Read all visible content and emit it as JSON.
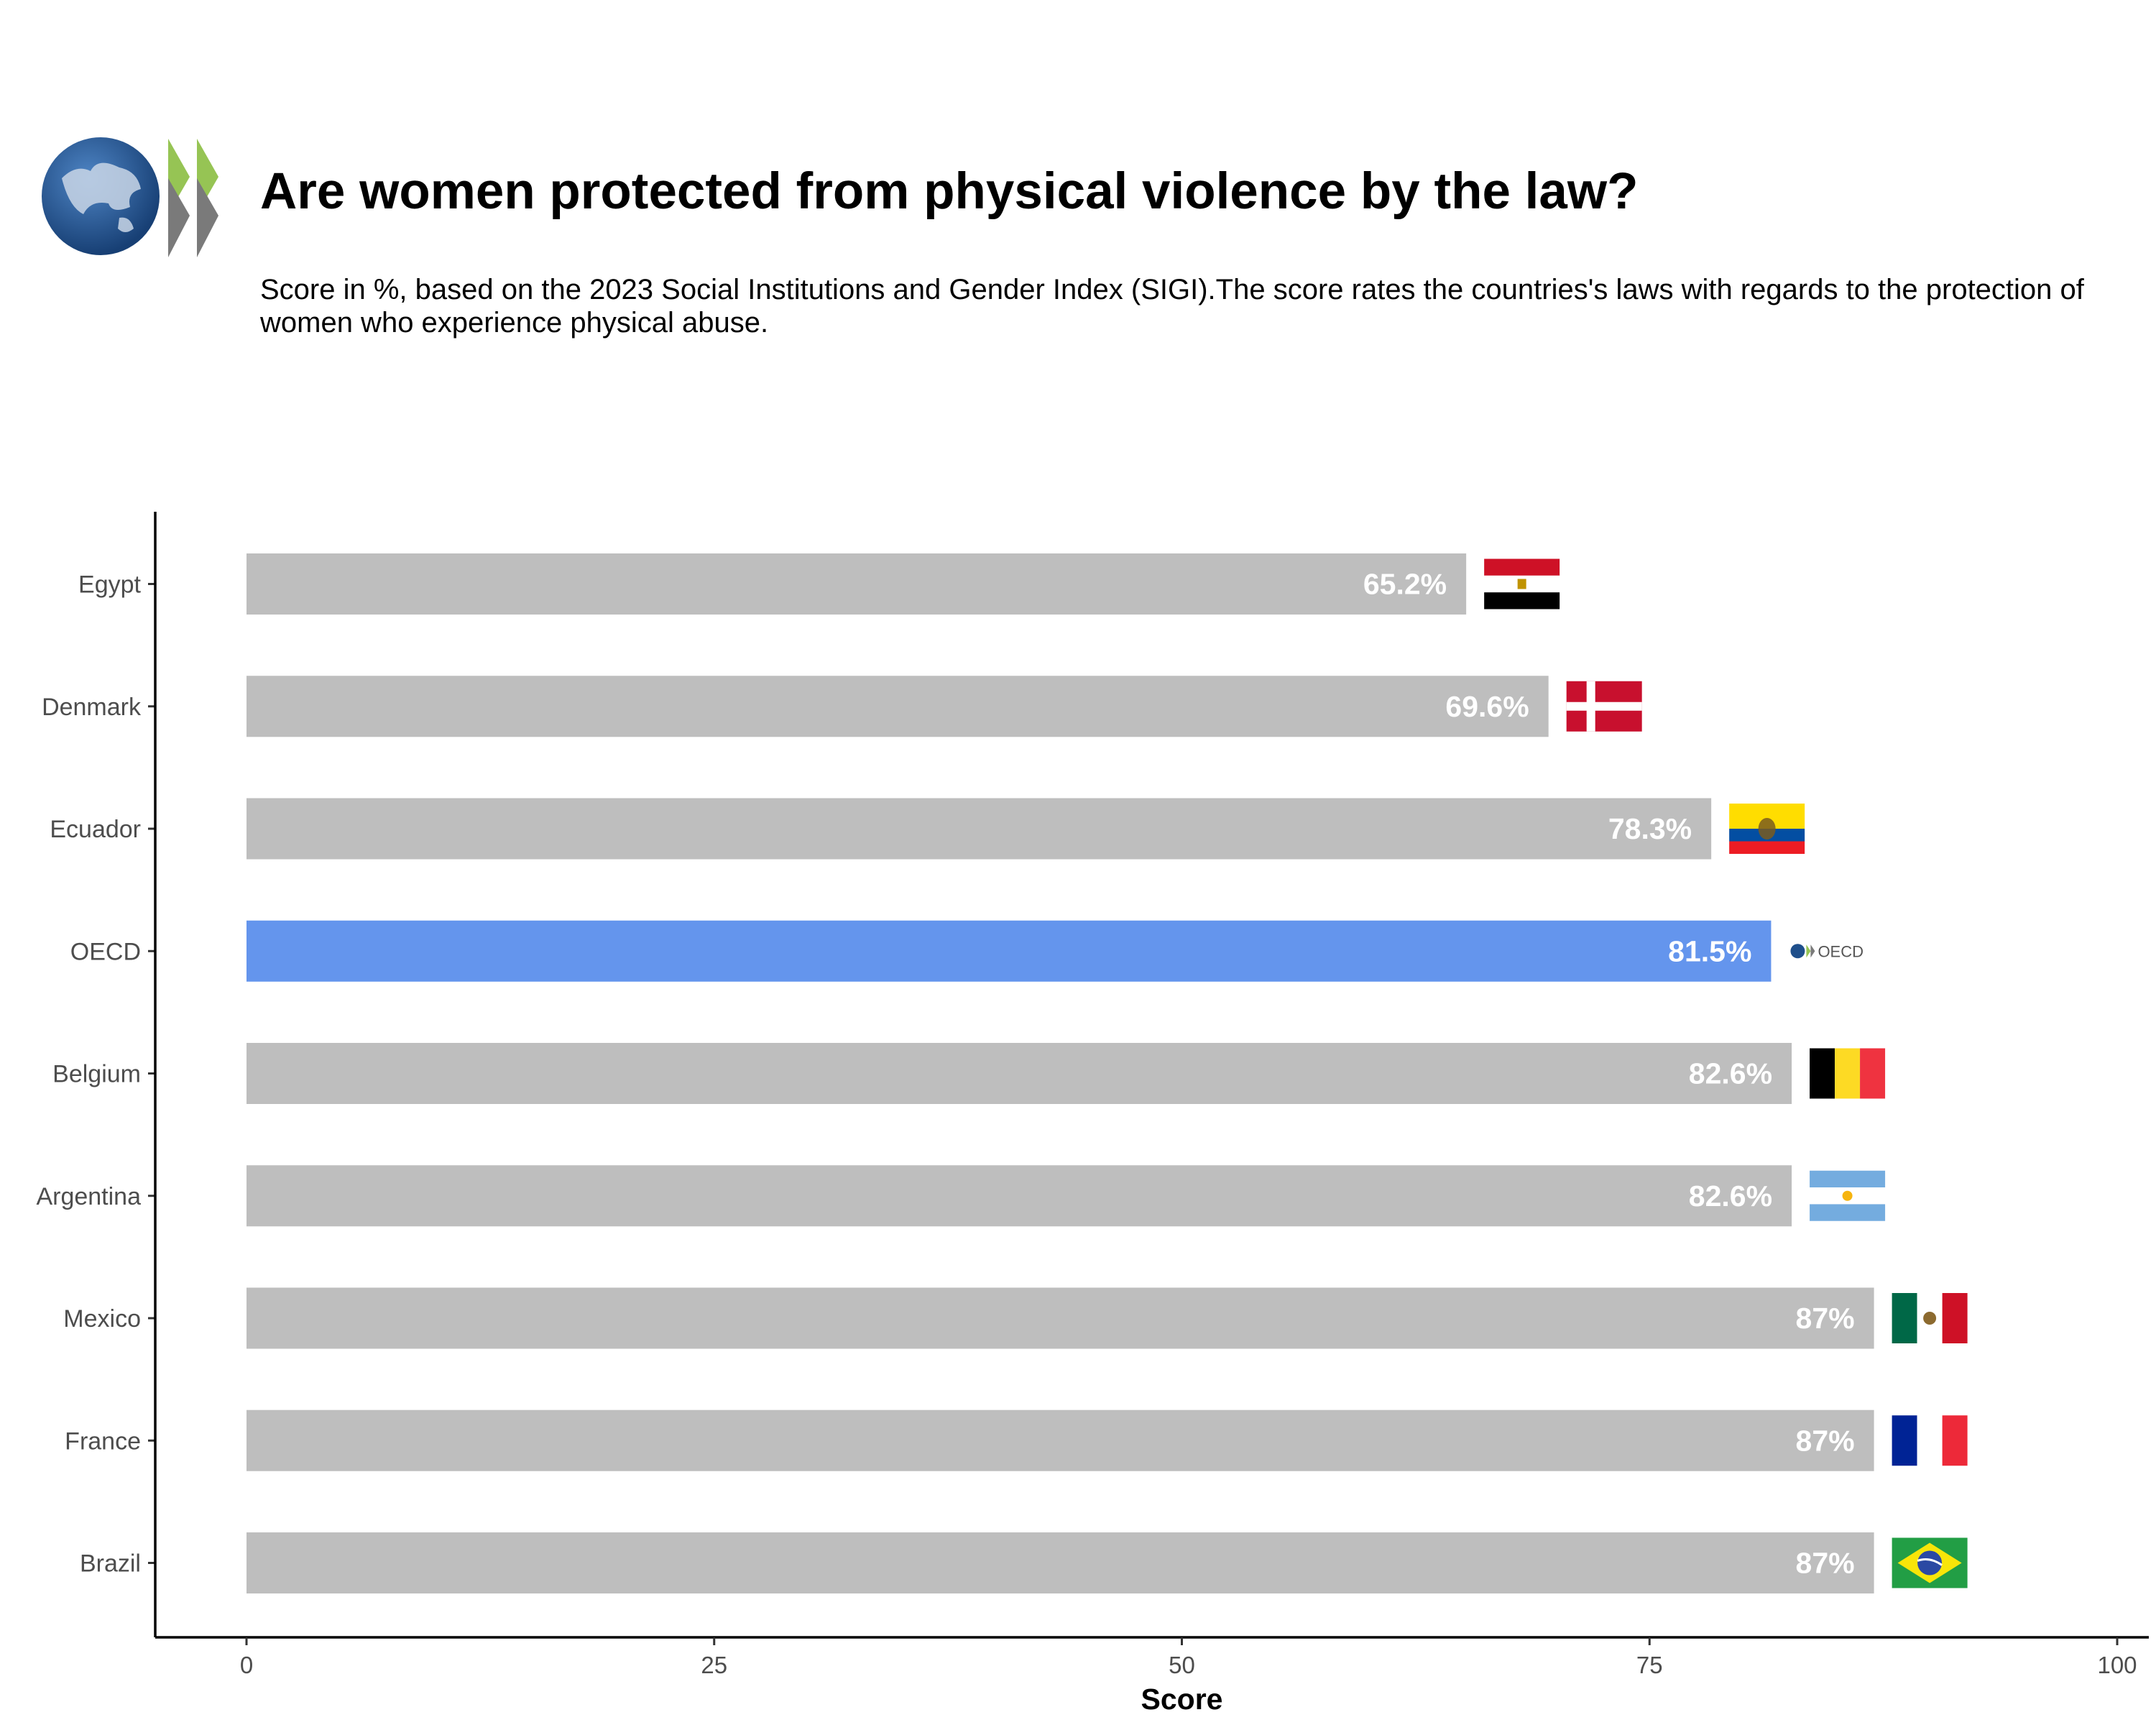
{
  "header": {
    "title": "Are women protected from physical violence by the law?",
    "subtitle": "Score in %, based on the 2023 Social Institutions and Gender Index (SIGI).The score rates the countries's laws with regards to the protection of women who experience physical abuse."
  },
  "chart_data": {
    "type": "bar",
    "orientation": "horizontal",
    "categories": [
      "Egypt",
      "Denmark",
      "Ecuador",
      "OECD",
      "Belgium",
      "Argentina",
      "Mexico",
      "France",
      "Brazil"
    ],
    "values": [
      65.2,
      69.6,
      78.3,
      81.5,
      82.6,
      82.6,
      87,
      87,
      87
    ],
    "value_labels": [
      "65.2%",
      "69.6%",
      "78.3%",
      "81.5%",
      "82.6%",
      "82.6%",
      "87%",
      "87%",
      "87%"
    ],
    "flags": [
      "egypt-flag-icon",
      "denmark-flag-icon",
      "ecuador-flag-icon",
      "oecd-logo-icon",
      "belgium-flag-icon",
      "argentina-flag-icon",
      "mexico-flag-icon",
      "france-flag-icon",
      "brazil-flag-icon"
    ],
    "bar_color": "#bebebe",
    "highlight_category": "OECD",
    "highlight_color": "#6495ed",
    "xlabel": "Score",
    "ylabel": "",
    "xlim": [
      0,
      100
    ],
    "xticks": [
      0,
      25,
      50,
      75,
      100
    ],
    "oecd_logo_text": "OECD",
    "grid": false
  }
}
